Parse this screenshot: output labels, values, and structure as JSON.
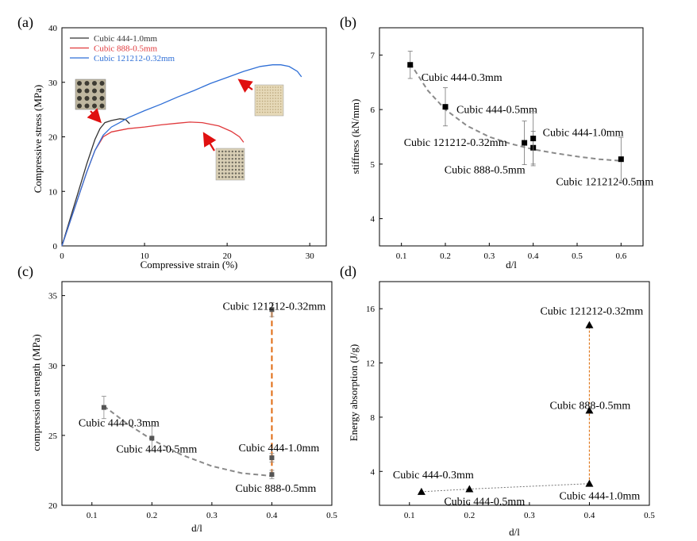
{
  "panel_labels": [
    "(a)",
    "(b)",
    "(c)",
    "(d)"
  ],
  "colors": {
    "black": "#333333",
    "red": "#e0393c",
    "blue": "#2f6fd6",
    "arrow": "#e01010",
    "fit_gray": "#8a8a8a",
    "fit_orange": "#e06a10",
    "dotted_orange": "#e07a20",
    "sample_tan": "#e6d9b8",
    "sample_dark": "#6e6a5e"
  },
  "chart_data": [
    {
      "panel": "(a)",
      "type": "line",
      "xlabel": "Compressive strain (%)",
      "ylabel": "Compressive stress (MPa)",
      "xlim": [
        0,
        32
      ],
      "ylim": [
        0,
        40
      ],
      "xticks": [
        "0",
        "10",
        "20",
        "30"
      ],
      "yticks": [
        "0",
        "10",
        "20",
        "30",
        "40"
      ],
      "legend": "top-left",
      "series": [
        {
          "name": "Cubic 444-1.0mm",
          "color": "#333333",
          "x": [
            0,
            1,
            2,
            3,
            4,
            4.6,
            5.2,
            6,
            7,
            7.7,
            8.2
          ],
          "y": [
            0,
            5,
            10,
            15,
            19.5,
            21.5,
            22.6,
            23,
            23.3,
            23.2,
            22.4
          ]
        },
        {
          "name": "Cubic 888-0.5mm",
          "color": "#e0393c",
          "x": [
            0,
            1,
            2,
            3,
            4,
            5,
            6,
            8,
            10,
            12,
            14,
            15.5,
            17,
            19,
            20.5,
            21.5,
            22
          ],
          "y": [
            0,
            4.5,
            9,
            13.5,
            17.5,
            20,
            20.9,
            21.5,
            21.8,
            22.2,
            22.5,
            22.7,
            22.6,
            22,
            21,
            20,
            19
          ]
        },
        {
          "name": "Cubic 121212-0.32mm",
          "color": "#2f6fd6",
          "x": [
            0,
            1,
            2,
            3,
            4,
            5,
            6,
            7,
            8,
            10,
            12,
            14,
            16,
            18,
            20,
            22,
            24,
            25.5,
            26.5,
            27.5,
            28.5,
            29
          ],
          "y": [
            0,
            4.5,
            9,
            13.5,
            17.5,
            20.3,
            21.8,
            22.6,
            23.5,
            24.8,
            26,
            27.3,
            28.5,
            29.8,
            30.9,
            32,
            32.9,
            33.2,
            33.2,
            32.9,
            32,
            31
          ]
        }
      ]
    },
    {
      "panel": "(b)",
      "type": "scatter",
      "xlabel": "d/l",
      "ylabel": "stiffness (kN/mm)",
      "xlim": [
        0.05,
        0.65
      ],
      "ylim": [
        3.5,
        7.5
      ],
      "xticks": [
        "0.1",
        "0.2",
        "0.3",
        "0.4",
        "0.5",
        "0.6"
      ],
      "yticks": [
        "4",
        "5",
        "6",
        "7"
      ],
      "points": [
        {
          "label": "Cubic 444-0.3mm",
          "x": 0.12,
          "y": 6.82,
          "err": 0.25
        },
        {
          "label": "Cubic 444-0.5mm",
          "x": 0.2,
          "y": 6.05,
          "err": 0.35
        },
        {
          "label": "Cubic 121212-0.32mm",
          "x": 0.38,
          "y": 5.39,
          "err": 0.4
        },
        {
          "label": "Cubic 888-0.5mm",
          "x": 0.4,
          "y": 5.3,
          "err": 0.3
        },
        {
          "label": "Cubic 444-1.0mm",
          "x": 0.4,
          "y": 5.47,
          "err": 0.5
        },
        {
          "label": "Cubic 121212-0.5mm",
          "x": 0.6,
          "y": 5.09,
          "err": 0.4
        }
      ],
      "fit_x": [
        0.12,
        0.16,
        0.2,
        0.25,
        0.3,
        0.35,
        0.4,
        0.45,
        0.5,
        0.55,
        0.6
      ],
      "fit_y": [
        6.85,
        6.35,
        6.0,
        5.7,
        5.5,
        5.37,
        5.27,
        5.2,
        5.14,
        5.09,
        5.06
      ]
    },
    {
      "panel": "(c)",
      "type": "scatter",
      "xlabel": "d/l",
      "ylabel": "compression strength (MPa)",
      "xlim": [
        0.05,
        0.5
      ],
      "ylim": [
        20,
        36
      ],
      "xticks": [
        "0.1",
        "0.2",
        "0.3",
        "0.4",
        "0.5"
      ],
      "yticks": [
        "20",
        "25",
        "30",
        "35"
      ],
      "points": [
        {
          "label": "Cubic 444-0.3mm",
          "x": 0.12,
          "y": 27.0,
          "err": 0.8
        },
        {
          "label": "Cubic 444-0.5mm",
          "x": 0.2,
          "y": 24.8,
          "err": 0.9
        },
        {
          "label": "Cubic 444-1.0mm",
          "x": 0.4,
          "y": 23.4,
          "err": 0.3
        },
        {
          "label": "Cubic 888-0.5mm",
          "x": 0.4,
          "y": 22.2,
          "err": 0.3
        },
        {
          "label": "Cubic 121212-0.32mm",
          "x": 0.4,
          "y": 34.0,
          "err": 0.5
        }
      ],
      "fit_x": [
        0.12,
        0.16,
        0.2,
        0.25,
        0.3,
        0.35,
        0.4
      ],
      "fit_y": [
        27.1,
        25.8,
        24.7,
        23.6,
        22.8,
        22.3,
        22.1
      ],
      "vertical_line_x": 0.4,
      "vertical_line_y": [
        22.2,
        34.0
      ]
    },
    {
      "panel": "(d)",
      "type": "scatter",
      "xlabel": "d/l",
      "ylabel": "Energy absorption (J/g)",
      "xlim": [
        0.05,
        0.5
      ],
      "ylim": [
        1.5,
        18
      ],
      "xticks": [
        "0.1",
        "0.2",
        "0.3",
        "0.4",
        "0.5"
      ],
      "yticks": [
        "4",
        "8",
        "12",
        "16"
      ],
      "points": [
        {
          "label": "Cubic 444-0.3mm",
          "x": 0.12,
          "y": 2.5
        },
        {
          "label": "Cubic 444-0.5mm",
          "x": 0.2,
          "y": 2.7
        },
        {
          "label": "Cubic 444-1.0mm",
          "x": 0.4,
          "y": 3.1
        },
        {
          "label": "Cubic 888-0.5mm",
          "x": 0.4,
          "y": 8.5
        },
        {
          "label": "Cubic 121212-0.32mm",
          "x": 0.4,
          "y": 14.8
        }
      ],
      "trend_x": [
        0.12,
        0.2,
        0.4
      ],
      "trend_y": [
        2.5,
        2.7,
        3.1
      ],
      "vertical_line_x": 0.4,
      "vertical_line_y": [
        3.1,
        14.8
      ]
    }
  ]
}
